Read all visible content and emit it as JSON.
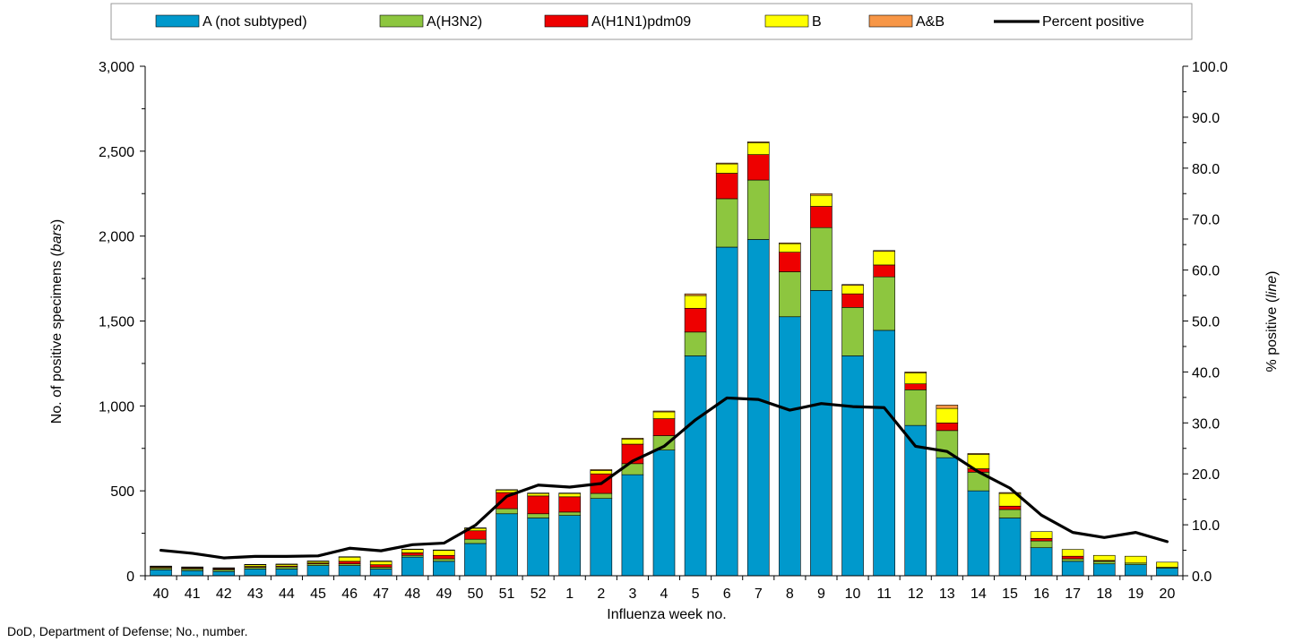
{
  "chart_data": {
    "type": "bar",
    "stacked": true,
    "xlabel": "Influenza week no.",
    "ylabel_prefix": "No. of positive specimens (",
    "ylabel_italic": "bars",
    "ylabel_suffix": ")",
    "y2label_prefix": "% positive (",
    "y2label_italic": "line",
    "y2label_suffix": ")",
    "ylim": [
      0,
      3000
    ],
    "yticks": [
      "0",
      "500",
      "1,000",
      "1,500",
      "2,000",
      "2,500",
      "3,000"
    ],
    "y2lim": [
      0,
      100
    ],
    "y2ticks": [
      "0.0",
      "10.0",
      "20.0",
      "30.0",
      "40.0",
      "50.0",
      "60.0",
      "70.0",
      "80.0",
      "90.0",
      "100.0"
    ],
    "grid": false,
    "legend_position": "top",
    "categories": [
      "40",
      "41",
      "42",
      "43",
      "44",
      "45",
      "46",
      "47",
      "48",
      "49",
      "50",
      "51",
      "52",
      "1",
      "2",
      "3",
      "4",
      "5",
      "6",
      "7",
      "8",
      "9",
      "10",
      "11",
      "12",
      "13",
      "14",
      "15",
      "16",
      "17",
      "18",
      "19",
      "20"
    ],
    "series": [
      {
        "name": "A (not subtyped)",
        "color": "#0099CC",
        "values": [
          35,
          30,
          25,
          40,
          40,
          60,
          60,
          40,
          110,
          85,
          190,
          365,
          340,
          355,
          455,
          595,
          740,
          1295,
          1935,
          1980,
          1525,
          1680,
          1295,
          1445,
          885,
          695,
          500,
          340,
          165,
          85,
          70,
          65,
          45
        ]
      },
      {
        "name": "A(H3N2)",
        "color": "#8DC63F",
        "values": [
          10,
          10,
          10,
          10,
          12,
          10,
          10,
          10,
          10,
          15,
          25,
          30,
          25,
          20,
          30,
          65,
          85,
          140,
          285,
          350,
          265,
          370,
          285,
          315,
          210,
          160,
          110,
          50,
          40,
          15,
          15,
          10,
          5
        ]
      },
      {
        "name": "A(H1N1)pdm09",
        "color": "#EE0000",
        "values": [
          5,
          5,
          5,
          5,
          5,
          5,
          15,
          15,
          15,
          20,
          50,
          95,
          105,
          90,
          115,
          115,
          100,
          140,
          150,
          150,
          115,
          125,
          80,
          70,
          35,
          45,
          20,
          20,
          15,
          15,
          5,
          0,
          0
        ]
      },
      {
        "name": "B",
        "color": "#FFFF00",
        "values": [
          5,
          5,
          5,
          10,
          10,
          10,
          25,
          20,
          20,
          30,
          15,
          15,
          15,
          20,
          20,
          30,
          40,
          75,
          55,
          70,
          50,
          65,
          50,
          80,
          65,
          85,
          85,
          75,
          40,
          40,
          30,
          40,
          30
        ]
      },
      {
        "name": "A&B",
        "color": "#F79646",
        "values": [
          2,
          2,
          2,
          2,
          2,
          2,
          2,
          2,
          2,
          2,
          2,
          2,
          2,
          2,
          5,
          5,
          5,
          10,
          5,
          5,
          5,
          10,
          5,
          5,
          5,
          20,
          5,
          5,
          0,
          0,
          0,
          0,
          0
        ]
      }
    ],
    "line": {
      "name": "Percent positive",
      "color": "#000000",
      "values": [
        5.0,
        4.4,
        3.5,
        3.8,
        3.8,
        3.9,
        5.4,
        4.9,
        6.1,
        6.4,
        9.9,
        15.6,
        17.8,
        17.4,
        18.1,
        22.5,
        25.4,
        30.6,
        34.9,
        34.6,
        32.5,
        33.8,
        33.2,
        33.0,
        25.4,
        24.4,
        20.4,
        17.2,
        11.9,
        8.5,
        7.5,
        8.5,
        6.7
      ]
    }
  },
  "footnote": "DoD, Department of Defense; No., number."
}
